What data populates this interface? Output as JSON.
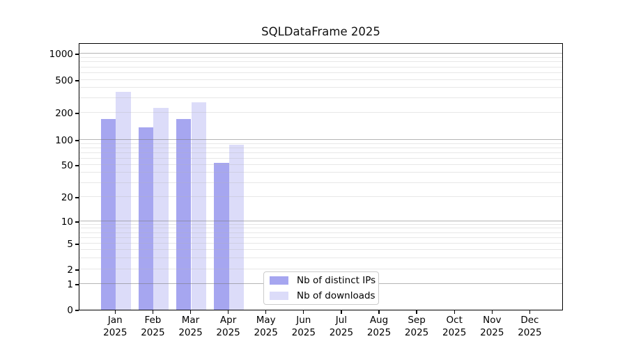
{
  "chart_data": {
    "type": "bar",
    "title": "SQLDataFrame 2025",
    "categories": [
      "Jan",
      "Feb",
      "Mar",
      "Apr",
      "May",
      "Jun",
      "Jul",
      "Aug",
      "Sep",
      "Oct",
      "Nov",
      "Dec"
    ],
    "x_sublabel": "2025",
    "series": [
      {
        "name": "Nb of distinct IPs",
        "color": "#a6a6f0",
        "values": [
          172,
          138,
          172,
          53,
          0,
          0,
          0,
          0,
          0,
          0,
          0,
          0
        ]
      },
      {
        "name": "Nb of downloads",
        "color": "#dcdcf9",
        "values": [
          358,
          230,
          266,
          87,
          0,
          0,
          0,
          0,
          0,
          0,
          0,
          0
        ]
      }
    ],
    "yticks": [
      0,
      1,
      2,
      5,
      10,
      20,
      50,
      100,
      200,
      500,
      1000
    ],
    "yscale": "symlog",
    "ylim": [
      0,
      1350
    ],
    "xlabel": "",
    "ylabel": "",
    "grid": true,
    "legend_position": "lower center-left"
  },
  "colors": {
    "major_grid": "#bdbdbd",
    "minor_grid": "#e9e9e9",
    "spine": "#000000",
    "text": "#000000"
  }
}
